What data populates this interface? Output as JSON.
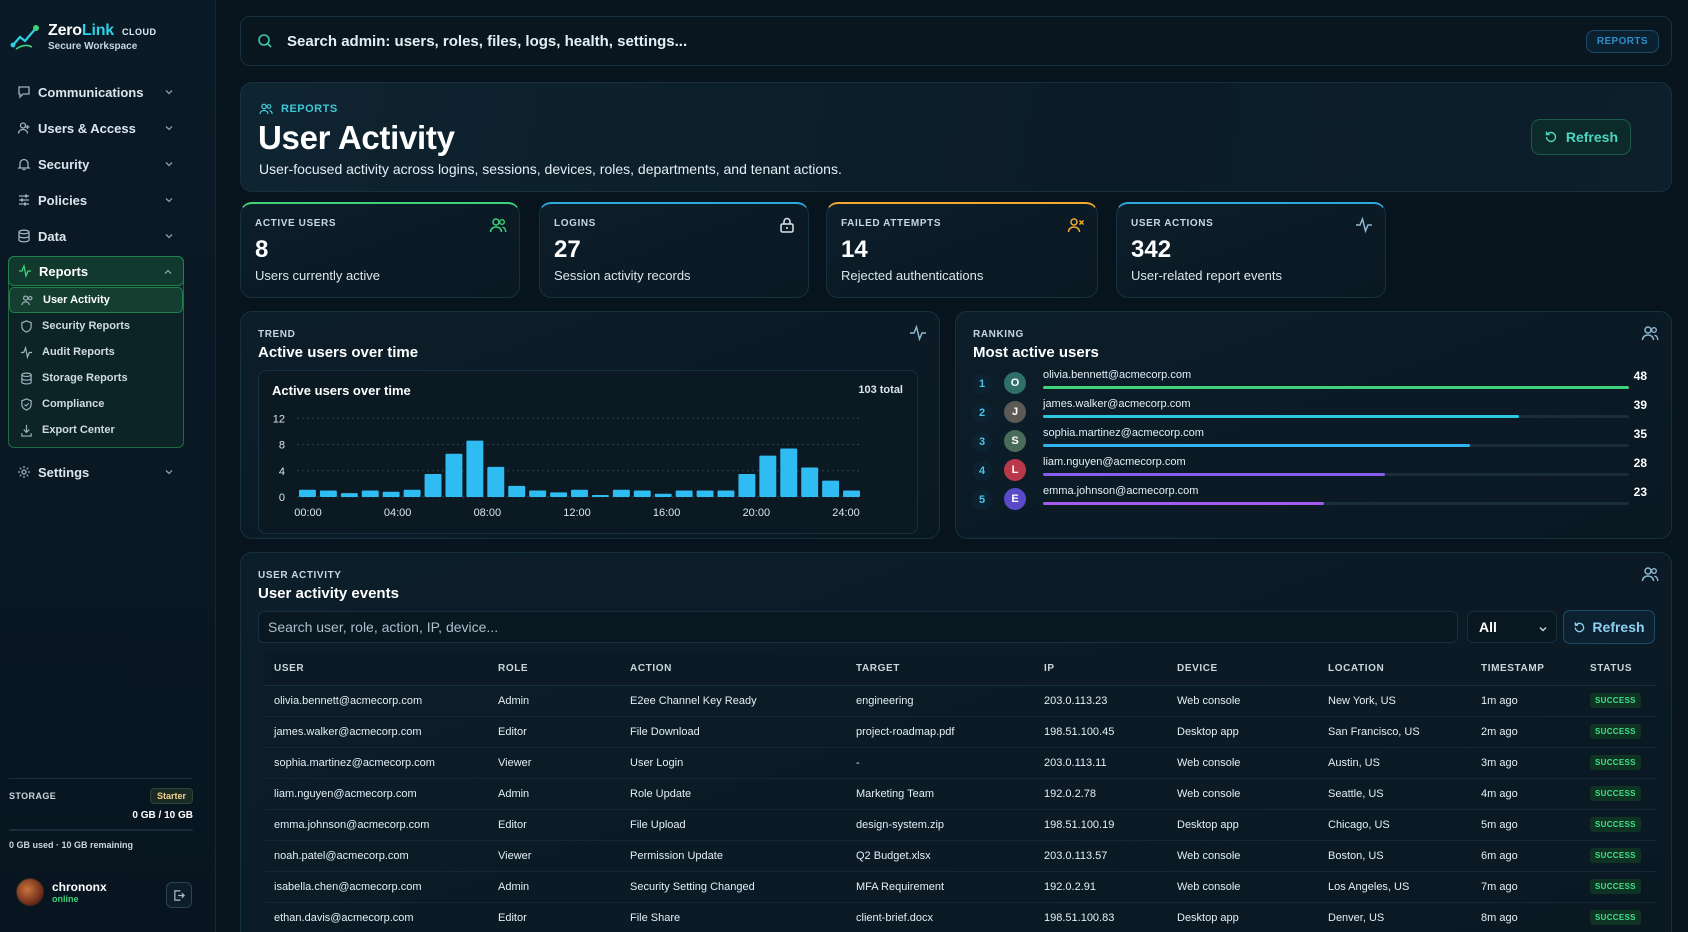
{
  "brand": {
    "name_part1": "Zero",
    "name_part2": "Link",
    "tier": "CLOUD",
    "subtitle": "Secure Workspace"
  },
  "nav": {
    "items": [
      {
        "label": "Communications",
        "icon": "message-icon"
      },
      {
        "label": "Users & Access",
        "icon": "user-icon"
      },
      {
        "label": "Security",
        "icon": "bell-icon"
      },
      {
        "label": "Policies",
        "icon": "sliders-icon"
      },
      {
        "label": "Data",
        "icon": "database-icon"
      }
    ],
    "reports": {
      "label": "Reports",
      "sub": [
        "User Activity",
        "Security Reports",
        "Audit Reports",
        "Storage Reports",
        "Compliance",
        "Export Center"
      ]
    },
    "settings": "Settings"
  },
  "storage": {
    "label": "STORAGE",
    "plan": "Starter",
    "amount": "0 GB / 10 GB",
    "used_fraction": 0,
    "note": "0 GB used · 10 GB remaining"
  },
  "user": {
    "name": "chrononx",
    "status": "online"
  },
  "search": {
    "placeholder": "Search admin: users, roles, files, logs, health, settings...",
    "chip": "REPORTS"
  },
  "hero": {
    "eyebrow": "REPORTS",
    "title": "User Activity",
    "description": "User-focused activity across logins, sessions, devices, roles, departments, and tenant actions.",
    "refresh": "Refresh"
  },
  "kpis": [
    {
      "label": "ACTIVE USERS",
      "value": "8",
      "desc": "Users currently active",
      "color": "#3fd27a",
      "icon": "users-icon"
    },
    {
      "label": "LOGINS",
      "value": "27",
      "desc": "Session activity records",
      "color": "#2fa8e0",
      "icon": "lock-icon"
    },
    {
      "label": "FAILED ATTEMPTS",
      "value": "14",
      "desc": "Rejected authentications",
      "color": "#f0a830",
      "icon": "user-x-icon"
    },
    {
      "label": "USER ACTIONS",
      "value": "342",
      "desc": "User-related report events",
      "color": "#2fa8e0",
      "icon": "activity-icon"
    }
  ],
  "trend": {
    "eyebrow": "TREND",
    "title": "Active users over time"
  },
  "chart_data": {
    "type": "bar",
    "title": "Active users over time",
    "total_label": "103 total",
    "x": [
      0,
      1,
      2,
      3,
      4,
      5,
      6,
      7,
      8,
      9,
      10,
      11,
      12,
      13,
      14,
      15,
      16,
      17,
      18,
      19,
      20,
      21,
      22,
      23,
      24,
      25,
      26
    ],
    "values": [
      1.1,
      1,
      0.6,
      1,
      0.8,
      1.1,
      3.5,
      6.6,
      8.6,
      4.6,
      1.7,
      1,
      0.7,
      1.1,
      0.3,
      1.1,
      1,
      0.5,
      1,
      1,
      1,
      3.5,
      6.3,
      7.4,
      4.5,
      2.5,
      1
    ],
    "x_tick_labels": [
      "00:00",
      "04:00",
      "08:00",
      "12:00",
      "16:00",
      "20:00",
      "24:00"
    ],
    "y_ticks": [
      0,
      4,
      8,
      12
    ],
    "ylim": [
      0,
      12.5
    ],
    "grid": true,
    "color": "#2fbcf2"
  },
  "ranking": {
    "eyebrow": "RANKING",
    "title": "Most active users",
    "rows": [
      {
        "rank": "1",
        "initial": "O",
        "email": "olivia.bennett@acmecorp.com",
        "count": "48",
        "value": 48,
        "avatar_color": "#2e6f6a",
        "bar_color": "#3fd27a"
      },
      {
        "rank": "2",
        "initial": "J",
        "email": "james.walker@acmecorp.com",
        "count": "39",
        "value": 39,
        "avatar_color": "#5c5a55",
        "bar_color": "#2fc6e0"
      },
      {
        "rank": "3",
        "initial": "S",
        "email": "sophia.martinez@acmecorp.com",
        "count": "35",
        "value": 35,
        "avatar_color": "#4a6a5a",
        "bar_color": "#2fb4f0"
      },
      {
        "rank": "4",
        "initial": "L",
        "email": "liam.nguyen@acmecorp.com",
        "count": "28",
        "value": 28,
        "avatar_color": "#b83a4a",
        "bar_color": "#8a5cf0"
      },
      {
        "rank": "5",
        "initial": "E",
        "email": "emma.johnson@acmecorp.com",
        "count": "23",
        "value": 23,
        "avatar_color": "#5a4ac8",
        "bar_color": "#a45cf0"
      }
    ]
  },
  "events": {
    "eyebrow": "USER ACTIVITY",
    "title": "User activity events",
    "search_placeholder": "Search user, role, action, IP, device...",
    "filter": "All",
    "refresh": "Refresh",
    "columns": [
      "USER",
      "ROLE",
      "ACTION",
      "TARGET",
      "IP",
      "DEVICE",
      "LOCATION",
      "TIMESTAMP",
      "STATUS"
    ],
    "rows": [
      [
        "olivia.bennett@acmecorp.com",
        "Admin",
        "E2ee Channel Key Ready",
        "engineering",
        "203.0.113.23",
        "Web console",
        "New York, US",
        "1m ago",
        "SUCCESS"
      ],
      [
        "james.walker@acmecorp.com",
        "Editor",
        "File Download",
        "project-roadmap.pdf",
        "198.51.100.45",
        "Desktop app",
        "San Francisco, US",
        "2m ago",
        "SUCCESS"
      ],
      [
        "sophia.martinez@acmecorp.com",
        "Viewer",
        "User Login",
        "-",
        "203.0.113.11",
        "Web console",
        "Austin, US",
        "3m ago",
        "SUCCESS"
      ],
      [
        "liam.nguyen@acmecorp.com",
        "Admin",
        "Role Update",
        "Marketing Team",
        "192.0.2.78",
        "Web console",
        "Seattle, US",
        "4m ago",
        "SUCCESS"
      ],
      [
        "emma.johnson@acmecorp.com",
        "Editor",
        "File Upload",
        "design-system.zip",
        "198.51.100.19",
        "Desktop app",
        "Chicago, US",
        "5m ago",
        "SUCCESS"
      ],
      [
        "noah.patel@acmecorp.com",
        "Viewer",
        "Permission Update",
        "Q2 Budget.xlsx",
        "203.0.113.57",
        "Web console",
        "Boston, US",
        "6m ago",
        "SUCCESS"
      ],
      [
        "isabella.chen@acmecorp.com",
        "Admin",
        "Security Setting Changed",
        "MFA Requirement",
        "192.0.2.91",
        "Web console",
        "Los Angeles, US",
        "7m ago",
        "SUCCESS"
      ],
      [
        "ethan.davis@acmecorp.com",
        "Editor",
        "File Share",
        "client-brief.docx",
        "198.51.100.83",
        "Desktop app",
        "Denver, US",
        "8m ago",
        "SUCCESS"
      ]
    ]
  }
}
